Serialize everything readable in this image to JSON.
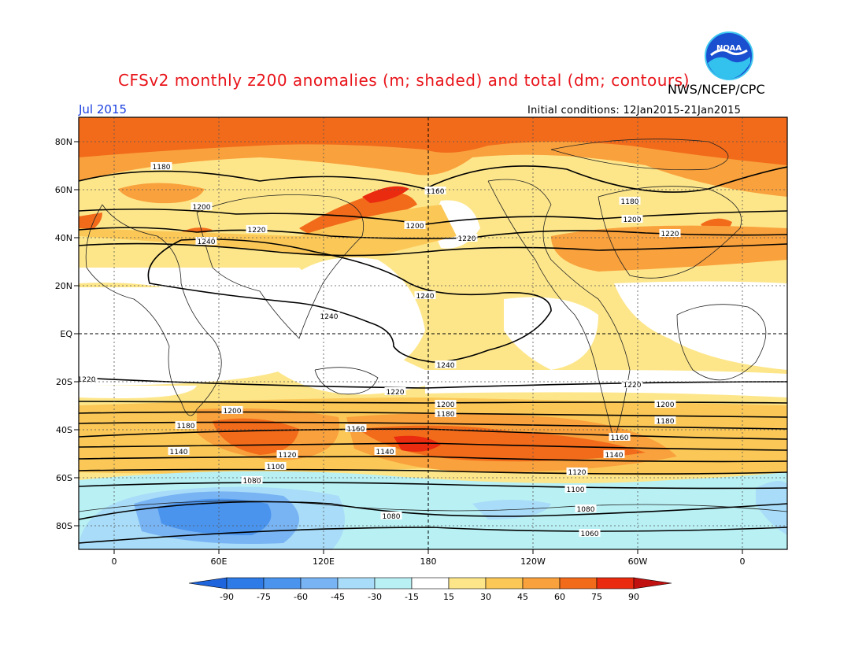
{
  "header": {
    "title": "CFSv2 monthly z200 anomalies (m; shaded) and total (dm; contours)",
    "agency": "NWS/NCEP/CPC",
    "month": "Jul 2015",
    "initial_conditions": "Initial conditions: 12Jan2015-21Jan2015"
  },
  "logo": {
    "icon": "noaa-logo-icon",
    "text": "NOAA"
  },
  "map": {
    "lat_labels": [
      "80N",
      "60N",
      "40N",
      "20N",
      "EQ",
      "20S",
      "40S",
      "60S",
      "80S"
    ],
    "lon_labels": [
      "0",
      "60E",
      "120E",
      "180",
      "120W",
      "60W",
      "0"
    ]
  },
  "contour_labels": [
    {
      "text": "1180"
    },
    {
      "text": "1160"
    },
    {
      "text": "1180"
    },
    {
      "text": "1200"
    },
    {
      "text": "1200"
    },
    {
      "text": "1200"
    },
    {
      "text": "1220"
    },
    {
      "text": "1220"
    },
    {
      "text": "1220"
    },
    {
      "text": "1240"
    },
    {
      "text": "1240"
    },
    {
      "text": "1240"
    },
    {
      "text": "1240"
    },
    {
      "text": "1220"
    },
    {
      "text": "1220"
    },
    {
      "text": "1220"
    },
    {
      "text": "1200"
    },
    {
      "text": "1200"
    },
    {
      "text": "1200"
    },
    {
      "text": "1180"
    },
    {
      "text": "1180"
    },
    {
      "text": "1180"
    },
    {
      "text": "1160"
    },
    {
      "text": "1160"
    },
    {
      "text": "1140"
    },
    {
      "text": "1140"
    },
    {
      "text": "1140"
    },
    {
      "text": "1120"
    },
    {
      "text": "1120"
    },
    {
      "text": "1100"
    },
    {
      "text": "1100"
    },
    {
      "text": "1080"
    },
    {
      "text": "1080"
    },
    {
      "text": "1080"
    },
    {
      "text": "1060"
    }
  ],
  "colorbar": {
    "labels": [
      "-90",
      "-75",
      "-60",
      "-45",
      "-30",
      "-15",
      "15",
      "30",
      "45",
      "60",
      "75",
      "90"
    ],
    "colors": [
      "#1e64dc",
      "#2e7ae6",
      "#4a94ee",
      "#78b4f4",
      "#a8dcf8",
      "#b8f0f4",
      "#ffffff",
      "#fde68a",
      "#fbc857",
      "#f9a13c",
      "#f26b1a",
      "#ea2b0f",
      "#c01010"
    ]
  }
}
